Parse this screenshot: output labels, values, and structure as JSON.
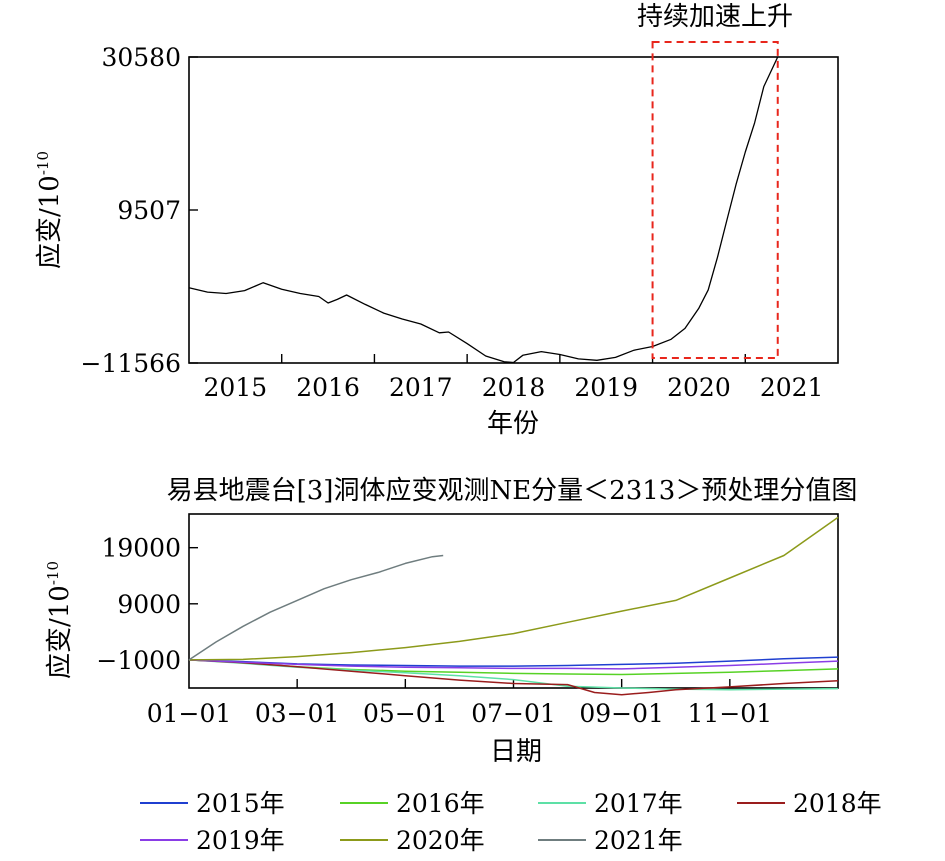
{
  "chart_data": [
    {
      "type": "line",
      "xlabel": "年份",
      "ylabel": "应变/10",
      "ylabel_exponent": "-10",
      "x_tick_labels": [
        "2015",
        "2016",
        "2017",
        "2018",
        "2019",
        "2020",
        "2021"
      ],
      "y_ticks": [
        {
          "value": 30580,
          "label": "30580"
        },
        {
          "value": 9507,
          "label": "9507"
        },
        {
          "value": -11566,
          "label": "−11566"
        }
      ],
      "xlim": [
        2014.5,
        2021.5
      ],
      "ylim": [
        -11566,
        30580
      ],
      "annotation": {
        "text": "持续加速上升",
        "x_range": [
          2019.5,
          2020.85
        ],
        "style": "dashed-box",
        "color": "#e8261c"
      },
      "series": [
        {
          "color": "#000000",
          "x": [
            2014.5,
            2014.7,
            2014.9,
            2015.1,
            2015.3,
            2015.5,
            2015.7,
            2015.9,
            2016.0,
            2016.1,
            2016.2,
            2016.4,
            2016.6,
            2016.8,
            2017.0,
            2017.2,
            2017.3,
            2017.5,
            2017.7,
            2017.9,
            2018.0,
            2018.1,
            2018.3,
            2018.5,
            2018.7,
            2018.9,
            2019.1,
            2019.3,
            2019.5,
            2019.7,
            2019.85,
            2020.0,
            2020.1,
            2020.2,
            2020.3,
            2020.4,
            2020.5,
            2020.6,
            2020.7,
            2020.85
          ],
          "y": [
            -1200,
            -1800,
            -2000,
            -1600,
            -500,
            -1400,
            -2000,
            -2400,
            -3300,
            -2800,
            -2200,
            -3500,
            -4700,
            -5500,
            -6200,
            -7400,
            -7300,
            -8900,
            -10600,
            -11400,
            -11500,
            -10500,
            -10000,
            -10400,
            -11000,
            -11200,
            -10800,
            -9800,
            -9300,
            -8300,
            -6800,
            -4000,
            -1500,
            3000,
            8000,
            13000,
            17500,
            21500,
            26500,
            30580
          ]
        }
      ]
    },
    {
      "type": "line",
      "title": "易县地震台[3]洞体应变观测NE分量＜2313＞预处理分值图",
      "xlabel": "日期",
      "ylabel": "应变/10",
      "ylabel_exponent": "-10",
      "x_tick_labels": [
        "01−01",
        "03−01",
        "05−01",
        "07−01",
        "09−01",
        "11−01"
      ],
      "x_tick_months": [
        0,
        2,
        4,
        6,
        8,
        10
      ],
      "y_ticks": [
        {
          "value": 19000,
          "label": "19000"
        },
        {
          "value": 9000,
          "label": "9000"
        },
        {
          "value": -1000,
          "label": "−1000"
        }
      ],
      "xlim": [
        0,
        12
      ],
      "ylim": [
        -6000,
        25000
      ],
      "legend_position": "bottom",
      "series": [
        {
          "name": "2015年",
          "color": "#1f3fd0",
          "x": [
            0,
            1,
            2,
            3,
            4,
            5,
            6,
            7,
            8,
            9,
            10,
            11,
            12
          ],
          "y": [
            -1000,
            -1300,
            -1700,
            -1900,
            -2000,
            -2100,
            -2100,
            -2000,
            -1800,
            -1600,
            -1200,
            -800,
            -500
          ]
        },
        {
          "name": "2016年",
          "color": "#57d225",
          "x": [
            0,
            1,
            2,
            3,
            4,
            5,
            6,
            7,
            8,
            9,
            10,
            11,
            12
          ],
          "y": [
            -1000,
            -1500,
            -2200,
            -2700,
            -3000,
            -3200,
            -3400,
            -3500,
            -3600,
            -3400,
            -3200,
            -2900,
            -2600
          ]
        },
        {
          "name": "2017年",
          "color": "#5de0a6",
          "x": [
            0,
            1,
            2,
            3,
            4,
            5,
            6,
            7,
            8,
            9,
            10,
            11,
            12
          ],
          "y": [
            -1000,
            -1600,
            -2300,
            -2800,
            -3300,
            -3800,
            -4500,
            -5700,
            -6000,
            -6200,
            -6300,
            -6200,
            -6100
          ]
        },
        {
          "name": "2018年",
          "color": "#9a1d1d",
          "x": [
            0,
            1,
            2,
            3,
            4,
            5,
            6,
            7,
            7.5,
            8,
            8.5,
            9,
            10,
            11,
            12
          ],
          "y": [
            -1000,
            -1500,
            -2200,
            -3000,
            -3800,
            -4600,
            -5200,
            -5400,
            -6800,
            -7200,
            -6800,
            -6300,
            -5800,
            -5200,
            -4700
          ]
        },
        {
          "name": "2019年",
          "color": "#8a3de6",
          "x": [
            0,
            1,
            2,
            3,
            4,
            5,
            6,
            7,
            8,
            9,
            10,
            11,
            12
          ],
          "y": [
            -1000,
            -1400,
            -1800,
            -2100,
            -2300,
            -2400,
            -2500,
            -2500,
            -2600,
            -2300,
            -2000,
            -1600,
            -1200
          ]
        },
        {
          "name": "2020年",
          "color": "#8c9a1a",
          "x": [
            0,
            1,
            2,
            3,
            4,
            5,
            6,
            7,
            8,
            9,
            10,
            11,
            12
          ],
          "y": [
            -1000,
            -900,
            -400,
            300,
            1200,
            2300,
            3700,
            5700,
            7700,
            9600,
            13600,
            17600,
            24400
          ]
        },
        {
          "name": "2021年",
          "color": "#6f7d7f",
          "x": [
            0,
            0.5,
            1,
            1.5,
            2,
            2.5,
            3,
            3.5,
            4,
            4.5,
            4.7
          ],
          "y": [
            -1000,
            2200,
            5000,
            7500,
            9600,
            11700,
            13300,
            14600,
            16200,
            17400,
            17600
          ]
        }
      ]
    }
  ]
}
